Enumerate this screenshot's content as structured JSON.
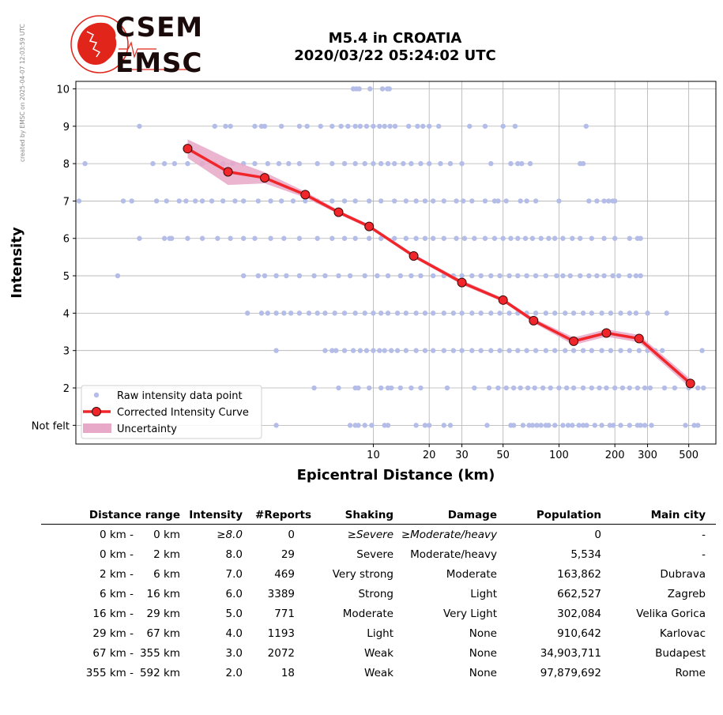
{
  "credit": "created by EMSC on 2025-04-07 12:03:59 UTC",
  "logo": {
    "top_text": "CSEM",
    "bottom_text": "EMSC",
    "red": "#e1251b"
  },
  "title": {
    "line1": "M5.4 in CROATIA",
    "line2": "2020/03/22 05:24:02 UTC"
  },
  "chart_data": {
    "type": "scatter",
    "xlabel": "Epicentral Distance (km)",
    "ylabel": "Intensity",
    "x_scale": "log",
    "xlim": [
      0.25,
      700
    ],
    "ylim": [
      0.5,
      10.2
    ],
    "x_ticks": [
      10,
      20,
      30,
      50,
      100,
      200,
      300,
      500
    ],
    "x_tick_labels": [
      "10",
      "20",
      "30",
      "50",
      "100",
      "200",
      "300",
      "500"
    ],
    "y_ticks": [
      1,
      2,
      3,
      4,
      5,
      6,
      7,
      8,
      9,
      10
    ],
    "y_tick_labels": [
      "Not felt",
      "2",
      "3",
      "4",
      "5",
      "6",
      "7",
      "8",
      "9",
      "10"
    ],
    "grid": true,
    "legend_position": "lower-left",
    "colors": {
      "raw": "#b3bde8",
      "curve": "#f0262a",
      "uncertainty": "#e8a8c8",
      "grid": "#b0b0b0"
    },
    "series": [
      {
        "name": "Raw intensity data point",
        "kind": "scatter",
        "ranges": [
          {
            "y": 10,
            "points": [
              7.8,
              8.1,
              8.4,
              9.6,
              11.2,
              11.9,
              12.2
            ]
          },
          {
            "y": 9,
            "points": [
              0.55,
              1.4,
              1.6,
              1.7,
              2.3,
              2.5,
              2.6,
              3.2,
              4.0,
              4.4,
              5.2,
              6.0,
              6.7,
              7.3,
              8.0,
              8.5,
              9.2,
              10.0,
              10.8,
              11.5,
              12.3,
              13.1,
              15.5,
              17.3,
              18.5,
              20.0,
              22.5,
              33.0,
              40.0,
              50.0,
              58.0,
              140.0
            ]
          },
          {
            "y": 8,
            "points": [
              0.28,
              0.65,
              0.75,
              0.85,
              1.0,
              1.2,
              1.4,
              1.55,
              1.75,
              2.0,
              2.3,
              2.7,
              3.1,
              3.5,
              4.0,
              5.0,
              6.0,
              7.0,
              8.0,
              9.0,
              10.0,
              11.0,
              12.0,
              13.0,
              14.5,
              16.0,
              18.0,
              20.0,
              23.0,
              26.0,
              30.0,
              43.0,
              55.0,
              60.0,
              63.0,
              70.0,
              130.0,
              135.0
            ]
          },
          {
            "y": 7,
            "points": [
              0.26,
              0.45,
              0.5,
              0.68,
              0.77,
              0.9,
              0.98,
              1.1,
              1.2,
              1.35,
              1.55,
              1.8,
              2.0,
              2.4,
              2.8,
              3.2,
              3.7,
              4.3,
              5.0,
              6.0,
              7.0,
              8.0,
              9.5,
              11.0,
              13.0,
              15.0,
              17.0,
              19.0,
              21.0,
              24.0,
              28.0,
              30.5,
              34.0,
              40.0,
              45.0,
              47.0,
              52.0,
              62.0,
              67.0,
              75.0,
              100.0,
              145.0,
              160.0,
              175.0,
              185.0,
              195.0,
              200.0
            ]
          },
          {
            "y": 6,
            "points": [
              0.55,
              0.75,
              0.8,
              0.82,
              1.0,
              1.2,
              1.45,
              1.7,
              2.0,
              2.3,
              2.8,
              3.3,
              4.0,
              5.0,
              6.0,
              7.0,
              8.0,
              9.5,
              11.0,
              13.0,
              15.0,
              17.0,
              19.0,
              21.0,
              24.0,
              28.0,
              31.0,
              35.0,
              40.0,
              45.0,
              50.0,
              55.0,
              60.0,
              66.0,
              72.0,
              80.0,
              88.0,
              95.0,
              105.0,
              118.0,
              130.0,
              150.0,
              175.0,
              200.0,
              240.0,
              265.0,
              275.0
            ]
          },
          {
            "y": 5,
            "points": [
              0.42,
              2.0,
              2.4,
              2.6,
              3.0,
              3.4,
              4.0,
              4.8,
              5.5,
              6.5,
              7.5,
              9.0,
              10.5,
              12.0,
              14.0,
              16.0,
              18.0,
              21.0,
              24.0,
              27.0,
              30.0,
              34.0,
              38.0,
              43.0,
              48.0,
              54.0,
              60.0,
              67.0,
              75.0,
              85.0,
              97.0,
              105.0,
              115.0,
              130.0,
              145.0,
              160.0,
              175.0,
              195.0,
              210.0,
              240.0,
              260.0,
              275.0
            ]
          },
          {
            "y": 4,
            "points": [
              2.1,
              2.5,
              2.7,
              3.0,
              3.3,
              3.6,
              4.0,
              4.5,
              5.0,
              5.5,
              6.2,
              7.0,
              8.0,
              9.0,
              10.0,
              11.0,
              12.0,
              13.5,
              15.0,
              17.0,
              19.0,
              21.0,
              24.0,
              27.0,
              30.0,
              34.0,
              38.0,
              43.0,
              48.0,
              54.0,
              60.0,
              67.0,
              75.0,
              85.0,
              95.0,
              108.0,
              120.0,
              135.0,
              150.0,
              170.0,
              190.0,
              215.0,
              240.0,
              260.0,
              300.0,
              380.0
            ]
          },
          {
            "y": 3,
            "points": [
              3.0,
              5.5,
              6.0,
              6.3,
              7.0,
              7.8,
              8.5,
              9.2,
              10.0,
              10.8,
              11.5,
              12.5,
              13.5,
              15.0,
              17.0,
              19.0,
              21.0,
              24.0,
              27.0,
              30.0,
              34.0,
              38.0,
              43.0,
              48.0,
              54.0,
              60.0,
              67.0,
              75.0,
              85.0,
              95.0,
              108.0,
              120.0,
              135.0,
              150.0,
              170.0,
              190.0,
              215.0,
              240.0,
              270.0,
              300.0,
              330.0,
              360.0,
              590.0
            ]
          },
          {
            "y": 2,
            "points": [
              4.8,
              6.5,
              8.0,
              8.3,
              9.5,
              11.0,
              12.0,
              12.5,
              14.0,
              16.0,
              18.0,
              25.0,
              35.0,
              42.0,
              47.0,
              52.0,
              57.0,
              62.0,
              68.0,
              74.0,
              82.0,
              90.0,
              100.0,
              110.0,
              120.0,
              135.0,
              150.0,
              165.0,
              180.0,
              200.0,
              220.0,
              240.0,
              265.0,
              290.0,
              310.0,
              370.0,
              420.0,
              500.0,
              560.0,
              600.0
            ]
          },
          {
            "y": 1,
            "points": [
              3.0,
              7.5,
              8.0,
              8.3,
              9.0,
              9.8,
              11.5,
              12.0,
              17.0,
              19.0,
              20.0,
              24.0,
              26.0,
              41.0,
              55.0,
              57.0,
              64.0,
              69.0,
              72.0,
              76.0,
              80.0,
              85.0,
              88.0,
              95.0,
              105.0,
              112.0,
              118.0,
              128.0,
              135.0,
              141.0,
              156.0,
              170.0,
              188.0,
              196.0,
              215.0,
              240.0,
              265.0,
              275.0,
              290.0,
              315.0,
              480.0,
              535.0,
              560.0
            ]
          }
        ]
      },
      {
        "name": "Corrected Intensity Curve",
        "kind": "line",
        "x": [
          1.0,
          1.65,
          2.6,
          4.3,
          6.5,
          9.5,
          16.5,
          30.0,
          50.0,
          73.0,
          120.0,
          180.0,
          270.0,
          510.0
        ],
        "y": [
          8.4,
          7.78,
          7.62,
          7.17,
          6.7,
          6.32,
          5.53,
          4.82,
          4.35,
          3.8,
          3.25,
          3.47,
          3.32,
          2.12
        ],
        "uncertainty": [
          0.25,
          0.35,
          0.15,
          0.08,
          0.05,
          0.05,
          0.05,
          0.06,
          0.05,
          0.06,
          0.1,
          0.1,
          0.1,
          0.12
        ]
      },
      {
        "name": "Uncertainty",
        "kind": "band"
      }
    ]
  },
  "table": {
    "headers": [
      "Distance range",
      "Intensity",
      "#Reports",
      "Shaking",
      "Damage",
      "Population",
      "Main city"
    ],
    "rows": [
      {
        "dist_from": "0 km -",
        "dist_to": "0 km",
        "intensity": "≥8.0",
        "reports": "0",
        "shaking": "≥Severe",
        "damage": "≥Moderate/heavy",
        "population": "0",
        "city": "-"
      },
      {
        "dist_from": "0 km -",
        "dist_to": "2 km",
        "intensity": "8.0",
        "reports": "29",
        "shaking": "Severe",
        "damage": "Moderate/heavy",
        "population": "5,534",
        "city": "-"
      },
      {
        "dist_from": "2 km -",
        "dist_to": "6 km",
        "intensity": "7.0",
        "reports": "469",
        "shaking": "Very strong",
        "damage": "Moderate",
        "population": "163,862",
        "city": "Dubrava"
      },
      {
        "dist_from": "6 km -",
        "dist_to": "16 km",
        "intensity": "6.0",
        "reports": "3389",
        "shaking": "Strong",
        "damage": "Light",
        "population": "662,527",
        "city": "Zagreb"
      },
      {
        "dist_from": "16 km -",
        "dist_to": "29 km",
        "intensity": "5.0",
        "reports": "771",
        "shaking": "Moderate",
        "damage": "Very Light",
        "population": "302,084",
        "city": "Velika Gorica"
      },
      {
        "dist_from": "29 km -",
        "dist_to": "67 km",
        "intensity": "4.0",
        "reports": "1193",
        "shaking": "Light",
        "damage": "None",
        "population": "910,642",
        "city": "Karlovac"
      },
      {
        "dist_from": "67 km -",
        "dist_to": "355 km",
        "intensity": "3.0",
        "reports": "2072",
        "shaking": "Weak",
        "damage": "None",
        "population": "34,903,711",
        "city": "Budapest"
      },
      {
        "dist_from": "355 km -",
        "dist_to": "592 km",
        "intensity": "2.0",
        "reports": "18",
        "shaking": "Weak",
        "damage": "None",
        "population": "97,879,692",
        "city": "Rome"
      }
    ]
  }
}
